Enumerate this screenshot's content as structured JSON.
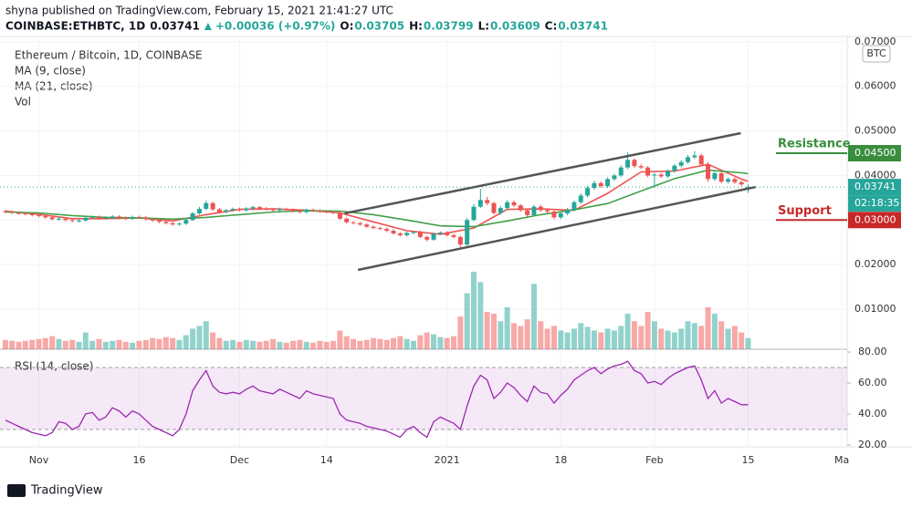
{
  "header": {
    "byline": "shyna published on TradingView.com, February 15, 2021 21:41:27 UTC",
    "symbol": "COINBASE:ETHBTC, 1D",
    "last": "0.03741",
    "change": "+0.00036 (+0.97%)",
    "ohlc": [
      {
        "label": "O:",
        "value": "0.03705"
      },
      {
        "label": "H:",
        "value": "0.03799"
      },
      {
        "label": "L:",
        "value": "0.03609"
      },
      {
        "label": "C:",
        "value": "0.03741"
      }
    ]
  },
  "legend": {
    "title": "Ethereum / Bitcoin, 1D, COINBASE",
    "items": [
      "MA (9, close)",
      "MA (21, close)",
      "Vol"
    ],
    "rsi": "RSI (14, close)"
  },
  "currency": "BTC",
  "footer": "TradingView",
  "chart_data": {
    "type": "candlestick",
    "up_color": "#26a69a",
    "down_color": "#ef5350",
    "xlim": [
      -0.8,
      125.8
    ],
    "xticks": [
      {
        "value": 5,
        "label": "Nov"
      },
      {
        "value": 20,
        "label": "16"
      },
      {
        "value": 35,
        "label": "Dec"
      },
      {
        "value": 48,
        "label": "14"
      },
      {
        "value": 66,
        "label": "2021"
      },
      {
        "value": 83,
        "label": "18"
      },
      {
        "value": 97,
        "label": "Feb"
      },
      {
        "value": 111,
        "label": "15"
      },
      {
        "value": 125,
        "label": "Ma"
      }
    ],
    "ylim": [
      0.001,
      0.0712
    ],
    "yticks": [
      {
        "value": 0.07,
        "label": "0.07000"
      },
      {
        "value": 0.06,
        "label": "0.06000"
      },
      {
        "value": 0.05,
        "label": "0.05000"
      },
      {
        "value": 0.04,
        "label": "0.04000"
      },
      {
        "value": 0.03,
        "label": "0.03000"
      },
      {
        "value": 0.02,
        "label": "0.02000"
      },
      {
        "value": 0.01,
        "label": "0.01000"
      }
    ],
    "grid": true,
    "open": [
      0.032,
      0.0318,
      0.0316,
      0.0315,
      0.0313,
      0.0311,
      0.0309,
      0.0306,
      0.0302,
      0.0303,
      0.03,
      0.0298,
      0.0299,
      0.0305,
      0.0307,
      0.0304,
      0.0306,
      0.0308,
      0.0305,
      0.0303,
      0.0307,
      0.0306,
      0.0302,
      0.0299,
      0.0296,
      0.0293,
      0.029,
      0.0292,
      0.03,
      0.0315,
      0.0325,
      0.0338,
      0.0324,
      0.0318,
      0.0322,
      0.0325,
      0.0322,
      0.0326,
      0.0329,
      0.0326,
      0.0324,
      0.0322,
      0.0325,
      0.0323,
      0.032,
      0.0318,
      0.0323,
      0.0321,
      0.0319,
      0.0318,
      0.0316,
      0.0303,
      0.0295,
      0.0293,
      0.029,
      0.0285,
      0.0282,
      0.028,
      0.0276,
      0.027,
      0.0266,
      0.0271,
      0.0273,
      0.0262,
      0.0256,
      0.0269,
      0.0272,
      0.0266,
      0.0262,
      0.0245,
      0.03,
      0.033,
      0.0345,
      0.0338,
      0.0316,
      0.0327,
      0.034,
      0.0333,
      0.0322,
      0.0311,
      0.033,
      0.0322,
      0.0319,
      0.0306,
      0.0315,
      0.0323,
      0.034,
      0.0355,
      0.0372,
      0.0383,
      0.0376,
      0.0392,
      0.04,
      0.0418,
      0.0435,
      0.0421,
      0.0418,
      0.04,
      0.0402,
      0.0398,
      0.041,
      0.0422,
      0.043,
      0.0441,
      0.0445,
      0.0425,
      0.0392,
      0.0405,
      0.0386,
      0.0392,
      0.0385,
      0.03705
    ],
    "high": [
      0.0323,
      0.0321,
      0.0319,
      0.0318,
      0.0316,
      0.0314,
      0.0312,
      0.0309,
      0.0307,
      0.0306,
      0.0303,
      0.0302,
      0.0308,
      0.031,
      0.031,
      0.0309,
      0.0311,
      0.0311,
      0.0308,
      0.031,
      0.031,
      0.0309,
      0.0305,
      0.0302,
      0.0299,
      0.0296,
      0.0295,
      0.0303,
      0.0318,
      0.033,
      0.0343,
      0.0341,
      0.0327,
      0.0325,
      0.0328,
      0.0328,
      0.0329,
      0.0332,
      0.0332,
      0.0329,
      0.0327,
      0.0328,
      0.0328,
      0.0326,
      0.0323,
      0.0326,
      0.0326,
      0.0324,
      0.0322,
      0.0321,
      0.0319,
      0.0306,
      0.0298,
      0.0296,
      0.0293,
      0.0288,
      0.0285,
      0.0283,
      0.0279,
      0.0273,
      0.0274,
      0.0276,
      0.0276,
      0.0265,
      0.0272,
      0.0275,
      0.0275,
      0.0269,
      0.0265,
      0.0305,
      0.0336,
      0.037,
      0.0352,
      0.0341,
      0.0332,
      0.0345,
      0.0344,
      0.0336,
      0.0325,
      0.0334,
      0.0334,
      0.0326,
      0.0322,
      0.0318,
      0.0327,
      0.0344,
      0.036,
      0.0377,
      0.0388,
      0.0387,
      0.0396,
      0.0404,
      0.0423,
      0.0452,
      0.0438,
      0.0426,
      0.0421,
      0.0406,
      0.0406,
      0.0414,
      0.0426,
      0.0434,
      0.0446,
      0.0455,
      0.0449,
      0.043,
      0.0409,
      0.0408,
      0.0396,
      0.0396,
      0.0389,
      0.03799
    ],
    "low": [
      0.0315,
      0.0313,
      0.0312,
      0.031,
      0.0308,
      0.0306,
      0.0303,
      0.0299,
      0.0299,
      0.0297,
      0.0295,
      0.0295,
      0.0296,
      0.0302,
      0.0301,
      0.0301,
      0.0303,
      0.0302,
      0.03,
      0.03,
      0.0303,
      0.0299,
      0.0296,
      0.0293,
      0.029,
      0.0287,
      0.0287,
      0.0289,
      0.0298,
      0.0312,
      0.0322,
      0.0321,
      0.0315,
      0.0315,
      0.0319,
      0.0319,
      0.0319,
      0.0323,
      0.0323,
      0.0321,
      0.0319,
      0.0319,
      0.032,
      0.0317,
      0.0315,
      0.0315,
      0.0318,
      0.0316,
      0.0315,
      0.0313,
      0.03,
      0.0292,
      0.029,
      0.0287,
      0.0282,
      0.0279,
      0.0277,
      0.0273,
      0.0267,
      0.0263,
      0.0263,
      0.0268,
      0.0259,
      0.0252,
      0.0253,
      0.0266,
      0.0263,
      0.0259,
      0.0238,
      0.0242,
      0.0297,
      0.0327,
      0.0333,
      0.0312,
      0.0312,
      0.0323,
      0.0329,
      0.0318,
      0.0307,
      0.0308,
      0.0318,
      0.0315,
      0.0302,
      0.0302,
      0.0311,
      0.032,
      0.0336,
      0.0351,
      0.0368,
      0.0372,
      0.0372,
      0.0388,
      0.0396,
      0.0414,
      0.0417,
      0.0414,
      0.0396,
      0.0372,
      0.0394,
      0.0394,
      0.0406,
      0.0418,
      0.0426,
      0.0437,
      0.0421,
      0.0386,
      0.0388,
      0.0382,
      0.0382,
      0.0381,
      0.0376,
      0.03609
    ],
    "close": [
      0.0318,
      0.0316,
      0.0315,
      0.0313,
      0.0311,
      0.0309,
      0.0306,
      0.0302,
      0.0303,
      0.03,
      0.0298,
      0.0299,
      0.0305,
      0.0307,
      0.0304,
      0.0306,
      0.0308,
      0.0305,
      0.0303,
      0.0307,
      0.0306,
      0.0302,
      0.0299,
      0.0296,
      0.0293,
      0.029,
      0.0292,
      0.03,
      0.0315,
      0.0325,
      0.0338,
      0.0324,
      0.0318,
      0.0322,
      0.0325,
      0.0322,
      0.0326,
      0.0329,
      0.0326,
      0.0324,
      0.0322,
      0.0325,
      0.0323,
      0.032,
      0.0318,
      0.0323,
      0.0321,
      0.0319,
      0.0318,
      0.0316,
      0.0303,
      0.0295,
      0.0293,
      0.029,
      0.0285,
      0.0282,
      0.028,
      0.0276,
      0.027,
      0.0266,
      0.0271,
      0.0273,
      0.0262,
      0.0256,
      0.0269,
      0.0272,
      0.0266,
      0.0262,
      0.0245,
      0.03,
      0.033,
      0.0345,
      0.0338,
      0.0316,
      0.0327,
      0.034,
      0.0333,
      0.0322,
      0.0311,
      0.033,
      0.0322,
      0.0319,
      0.0306,
      0.0315,
      0.0323,
      0.034,
      0.0355,
      0.0372,
      0.0383,
      0.0376,
      0.0392,
      0.04,
      0.0418,
      0.0435,
      0.0421,
      0.0418,
      0.04,
      0.0402,
      0.0398,
      0.041,
      0.0422,
      0.043,
      0.0441,
      0.0445,
      0.0425,
      0.0392,
      0.0405,
      0.0386,
      0.0392,
      0.0385,
      0.038,
      0.03741
    ],
    "volume": [
      10,
      9,
      8,
      9,
      10,
      11,
      12,
      14,
      11,
      9,
      10,
      8,
      18,
      9,
      11,
      8,
      9,
      10,
      8,
      7,
      9,
      10,
      12,
      11,
      13,
      12,
      10,
      15,
      22,
      25,
      30,
      18,
      12,
      9,
      10,
      8,
      10,
      9,
      8,
      9,
      11,
      8,
      7,
      9,
      10,
      8,
      7,
      9,
      8,
      9,
      20,
      14,
      11,
      9,
      10,
      12,
      11,
      10,
      12,
      14,
      11,
      9,
      15,
      18,
      16,
      13,
      12,
      14,
      35,
      60,
      83,
      72,
      40,
      38,
      30,
      45,
      28,
      25,
      32,
      70,
      30,
      22,
      25,
      20,
      18,
      22,
      28,
      24,
      20,
      18,
      22,
      20,
      25,
      38,
      30,
      25,
      40,
      30,
      22,
      20,
      18,
      22,
      30,
      28,
      25,
      45,
      38,
      30,
      22,
      25,
      18,
      12
    ],
    "ma": [
      {
        "name": "MA (9, close)",
        "color": "#ef5350",
        "x": [
          0,
          5,
          10,
          15,
          20,
          25,
          30,
          35,
          40,
          45,
          50,
          55,
          60,
          65,
          70,
          75,
          80,
          85,
          90,
          95,
          100,
          105,
          110,
          111
        ],
        "values": [
          0.032,
          0.0313,
          0.0303,
          0.0303,
          0.0305,
          0.0298,
          0.0312,
          0.0324,
          0.0325,
          0.0322,
          0.0316,
          0.0296,
          0.0276,
          0.0268,
          0.0282,
          0.0324,
          0.0325,
          0.0322,
          0.036,
          0.0408,
          0.041,
          0.0425,
          0.0392,
          0.0387
        ]
      },
      {
        "name": "MA (21, close)",
        "color": "#43a047",
        "x": [
          0,
          5,
          10,
          15,
          20,
          25,
          30,
          35,
          40,
          45,
          50,
          55,
          60,
          65,
          70,
          75,
          80,
          85,
          90,
          95,
          100,
          105,
          110,
          111
        ],
        "values": [
          0.0318,
          0.0316,
          0.031,
          0.0306,
          0.0305,
          0.0302,
          0.0306,
          0.0312,
          0.0318,
          0.0321,
          0.032,
          0.0312,
          0.03,
          0.0287,
          0.0285,
          0.0298,
          0.0312,
          0.0323,
          0.0337,
          0.0365,
          0.0393,
          0.0412,
          0.0406,
          0.0404
        ]
      }
    ],
    "trend_lines": [
      {
        "x": [
          50.7,
          109.9
        ],
        "y": [
          0.0315,
          0.0495
        ]
      },
      {
        "x": [
          52.7,
          112.1
        ],
        "y": [
          0.0188,
          0.0374
        ]
      }
    ],
    "last_price": {
      "value": 0.03741,
      "label": "0.03741",
      "countdown": "02:18:35",
      "color": "#26a69a"
    },
    "levels": [
      {
        "text": "Resistance",
        "value": 0.045,
        "label": "0.04500",
        "color": "#388e3c"
      },
      {
        "text": "Support",
        "value": 0.03,
        "label": "0.03000",
        "color": "#c62828"
      }
    ],
    "rsi": {
      "ylim": [
        18.8,
        81.8
      ],
      "yticks": [
        {
          "value": 80,
          "label": "80.00"
        },
        {
          "value": 60,
          "label": "60.00"
        },
        {
          "value": 40,
          "label": "40.00"
        },
        {
          "value": 20,
          "label": "20.00"
        }
      ],
      "bands": [
        30,
        70
      ],
      "color": "#9c27b0",
      "values": [
        36,
        34,
        32,
        30,
        28,
        27,
        26,
        28,
        35,
        34,
        30,
        32,
        40,
        41,
        36,
        38,
        44,
        42,
        38,
        42,
        40,
        36,
        32,
        30,
        28,
        26,
        30,
        40,
        55,
        62,
        68,
        58,
        54,
        53,
        54,
        53,
        56,
        58,
        55,
        54,
        53,
        56,
        54,
        52,
        50,
        55,
        53,
        52,
        51,
        50,
        40,
        36,
        35,
        34,
        32,
        31,
        30,
        29,
        27,
        25,
        30,
        32,
        28,
        25,
        35,
        38,
        36,
        34,
        30,
        45,
        58,
        65,
        62,
        50,
        54,
        60,
        57,
        52,
        48,
        58,
        54,
        53,
        47,
        52,
        56,
        62,
        65,
        68,
        70,
        66,
        69,
        71,
        72,
        74,
        68,
        66,
        60,
        61,
        59,
        63,
        66,
        68,
        70,
        71,
        62,
        50,
        55,
        47,
        50,
        48,
        46,
        46
      ]
    }
  }
}
